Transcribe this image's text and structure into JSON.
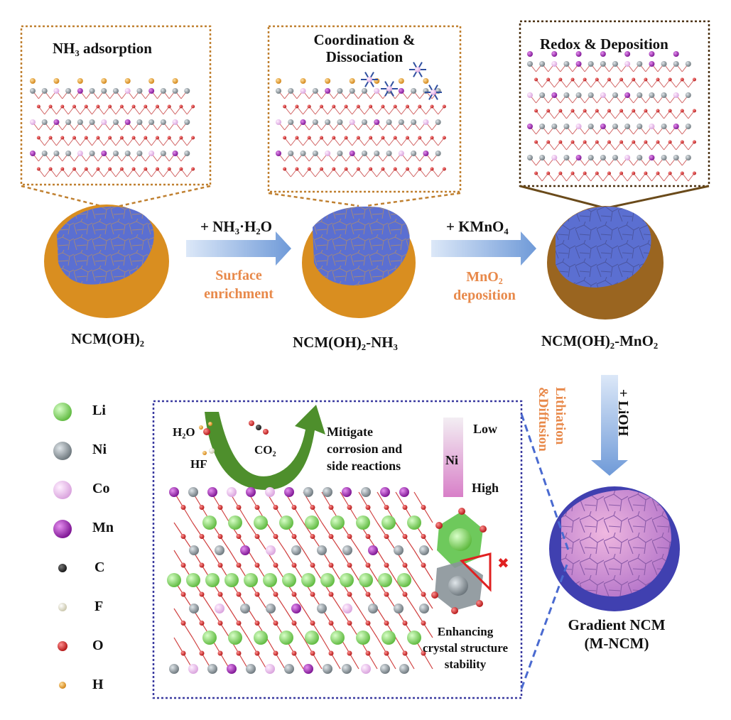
{
  "panels": {
    "p1_title": "NH₃ adsorption",
    "p2_title_line1": "Coordination &",
    "p2_title_line2": "Dissociation",
    "p3_title": "Redox & Deposition"
  },
  "particles": {
    "p1_label": "NCM(OH)₂",
    "p2_label": "NCM(OH)₂-NH₃",
    "p3_label": "NCM(OH)₂-MnO₂",
    "p4_label_line1": "Gradient NCM",
    "p4_label_line2": "(M-NCM)"
  },
  "steps": {
    "s1_reagent": "+ NH₃·H₂O",
    "s1_desc_line1": "Surface",
    "s1_desc_line2": "enrichment",
    "s2_reagent": "+ KMnO₄",
    "s2_desc_line1": "MnO₂",
    "s2_desc_line2": "deposition",
    "s3_reagent": "+ LiOH",
    "s3_desc_line1": "Lithiation",
    "s3_desc_line2": "&Diffusion"
  },
  "legend": [
    {
      "label": "Li",
      "color": "#7ed957"
    },
    {
      "label": "Ni",
      "color": "#8a9499"
    },
    {
      "label": "Co",
      "color": "#e6b3e6"
    },
    {
      "label": "Mn",
      "color": "#a020b0"
    },
    {
      "label": "C",
      "color": "#222222"
    },
    {
      "label": "F",
      "color": "#e6e3c8"
    },
    {
      "label": "O",
      "color": "#d62020"
    },
    {
      "label": "H",
      "color": "#e8a030"
    }
  ],
  "inset": {
    "h2o": "H₂O",
    "hf": "HF",
    "co2": "CO₂",
    "mitigate_line1": "Mitigate",
    "mitigate_line2": "corrosion and",
    "mitigate_line3": "side reactions",
    "gradient_element": "Ni",
    "gradient_low": "Low",
    "gradient_high": "High",
    "stability_line1": "Enhancing",
    "stability_line2": "crystal structure",
    "stability_line3": "stability"
  },
  "colors": {
    "orange": "#e8894a",
    "particle_blue": "#5b6fd1",
    "particle_orange": "#e0a030",
    "arrow_blue": "#7fa8e0",
    "inset_border": "#3a3aa0",
    "green_arrow": "#4e8f2c"
  }
}
